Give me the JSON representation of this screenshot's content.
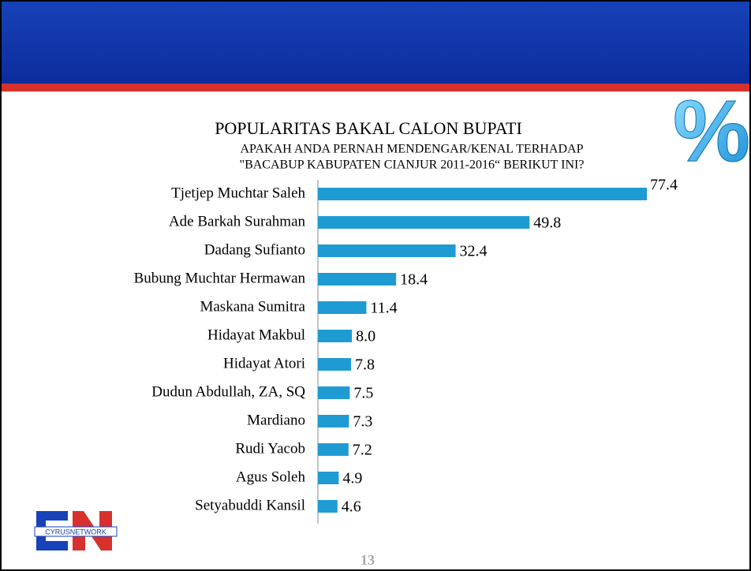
{
  "chart_data": {
    "type": "hbar",
    "title": "POPULARITAS BAKAL CALON BUPATI",
    "subtitle": [
      "APAKAH ANDA PERNAH MENDENGAR/KENAL TERHADAP",
      "\"BACABUP KABUPATEN CIANJUR 2011-2016“ BERIKUT INI?"
    ],
    "categories": [
      "Tjetjep Muchtar Saleh",
      "Ade Barkah Surahman",
      "Dadang Sufianto",
      "Bubung Muchtar Hermawan",
      "Maskana Sumitra",
      "Hidayat Makbul",
      "Hidayat Atori",
      "Dudun Abdullah, ZA, SQ",
      "Mardiano",
      "Rudi Yacob",
      "Agus Soleh",
      "Setyabuddi Kansil"
    ],
    "values": [
      77.4,
      49.8,
      32.4,
      18.4,
      11.4,
      8.0,
      7.8,
      7.5,
      7.3,
      7.2,
      4.9,
      4.6
    ],
    "value_labels": [
      "77.4",
      "49.8",
      "32.4",
      "18.4",
      "11.4",
      "8.0",
      "7.8",
      "7.5",
      "7.3",
      "7.2",
      "4.9",
      "4.6"
    ],
    "color": "#1e9bd3"
  },
  "icon_text": "%",
  "logo_text": "CYRUSNETWORK",
  "page_number": "13"
}
